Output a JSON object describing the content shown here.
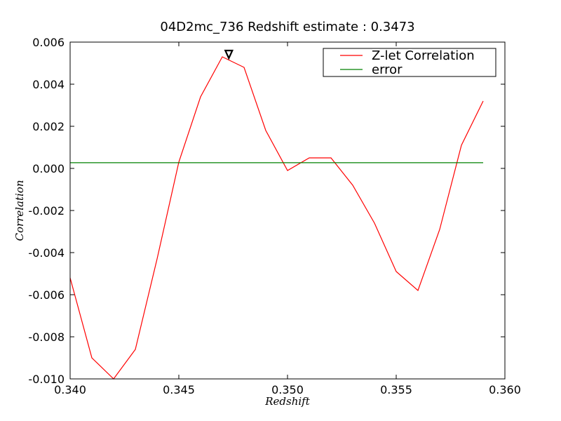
{
  "chart_data": {
    "type": "line",
    "title": "04D2mc_736 Redshift estimate : 0.3473",
    "xlabel": "Redshift",
    "ylabel": "Correlation",
    "xlim": [
      0.34,
      0.36
    ],
    "ylim": [
      -0.01,
      0.006
    ],
    "xticks": [
      "0.340",
      "0.345",
      "0.350",
      "0.355",
      "0.360"
    ],
    "yticks": [
      "-0.010",
      "-0.008",
      "-0.006",
      "-0.004",
      "-0.002",
      "0.000",
      "0.002",
      "0.004",
      "0.006"
    ],
    "grid": false,
    "legend_position": "top-right",
    "series": [
      {
        "name": "Z-let Correlation",
        "color": "#ff0000",
        "x": [
          0.34,
          0.341,
          0.342,
          0.343,
          0.344,
          0.345,
          0.346,
          0.347,
          0.348,
          0.349,
          0.35,
          0.351,
          0.352,
          0.353,
          0.354,
          0.355,
          0.356,
          0.357,
          0.358,
          0.359
        ],
        "y": [
          -0.0052,
          -0.009,
          -0.01,
          -0.0086,
          -0.0043,
          0.0003,
          0.0034,
          0.0053,
          0.0048,
          0.0018,
          -0.0001,
          0.0005,
          0.0005,
          -0.0008,
          -0.0026,
          -0.0049,
          -0.0058,
          -0.0029,
          0.0011,
          0.0032
        ]
      },
      {
        "name": "error",
        "color": "#008000",
        "x": [
          0.34,
          0.359
        ],
        "y": [
          0.00027,
          0.00027
        ]
      }
    ],
    "marker": {
      "x": 0.3473,
      "y": 0.0054,
      "icon": "down-triangle-icon"
    }
  }
}
